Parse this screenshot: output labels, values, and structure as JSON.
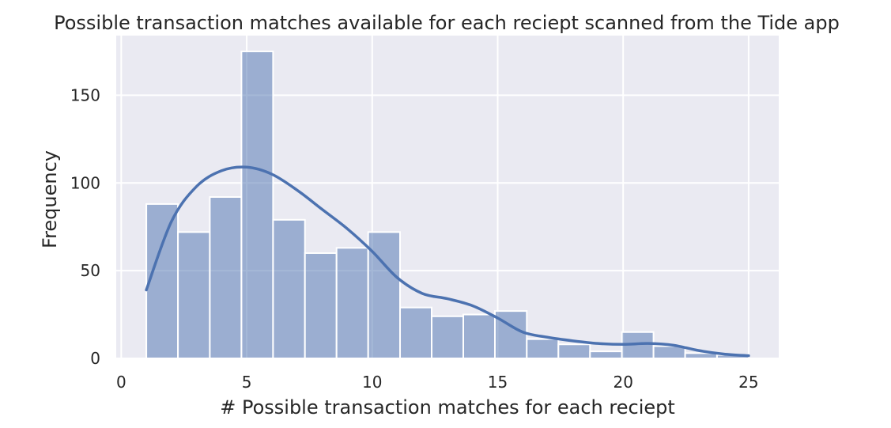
{
  "chart_data": {
    "type": "bar",
    "title": "Possible transaction matches available for each reciept scanned from the Tide app",
    "xlabel": "# Possible transaction matches for each reciept",
    "ylabel": "Frequency",
    "xlim": [
      -0.2,
      26.2
    ],
    "ylim": [
      0,
      184
    ],
    "xticks": [
      0,
      5,
      10,
      15,
      20,
      25
    ],
    "yticks": [
      0,
      50,
      100,
      150
    ],
    "grid": true,
    "bins": [
      {
        "x0": 1.0,
        "x1": 2.26,
        "count": 88
      },
      {
        "x0": 2.26,
        "x1": 3.53,
        "count": 72
      },
      {
        "x0": 3.53,
        "x1": 4.79,
        "count": 92
      },
      {
        "x0": 4.79,
        "x1": 6.05,
        "count": 175
      },
      {
        "x0": 6.05,
        "x1": 7.32,
        "count": 79
      },
      {
        "x0": 7.32,
        "x1": 8.58,
        "count": 60
      },
      {
        "x0": 8.58,
        "x1": 9.84,
        "count": 63
      },
      {
        "x0": 9.84,
        "x1": 11.11,
        "count": 72
      },
      {
        "x0": 11.11,
        "x1": 12.37,
        "count": 29
      },
      {
        "x0": 12.37,
        "x1": 13.63,
        "count": 24
      },
      {
        "x0": 13.63,
        "x1": 14.89,
        "count": 25
      },
      {
        "x0": 14.89,
        "x1": 16.16,
        "count": 27
      },
      {
        "x0": 16.16,
        "x1": 17.42,
        "count": 11
      },
      {
        "x0": 17.42,
        "x1": 18.68,
        "count": 8
      },
      {
        "x0": 18.68,
        "x1": 19.95,
        "count": 4
      },
      {
        "x0": 19.95,
        "x1": 21.21,
        "count": 15
      },
      {
        "x0": 21.21,
        "x1": 22.47,
        "count": 7
      },
      {
        "x0": 22.47,
        "x1": 23.74,
        "count": 3
      },
      {
        "x0": 23.74,
        "x1": 25.0,
        "count": 2
      }
    ],
    "kde": {
      "x": [
        1.0,
        2.0,
        3.0,
        4.0,
        5.0,
        6.0,
        7.0,
        8.0,
        9.0,
        10.0,
        11.0,
        12.0,
        13.0,
        14.0,
        15.0,
        16.0,
        17.0,
        18.0,
        19.0,
        20.0,
        21.0,
        22.0,
        23.0,
        24.0,
        25.0
      ],
      "y": [
        39,
        78,
        98,
        107,
        109,
        105,
        96,
        85,
        74,
        61,
        46,
        37,
        34,
        30,
        23,
        15,
        12,
        10,
        8.5,
        8,
        8.5,
        7.5,
        4.5,
        2.5,
        1.5
      ]
    },
    "colors": {
      "background": "#eaeaf2",
      "bar_fill": "#4c72b0",
      "bar_alpha": 0.5,
      "kde_line": "#4c72b0",
      "grid": "#ffffff"
    }
  }
}
